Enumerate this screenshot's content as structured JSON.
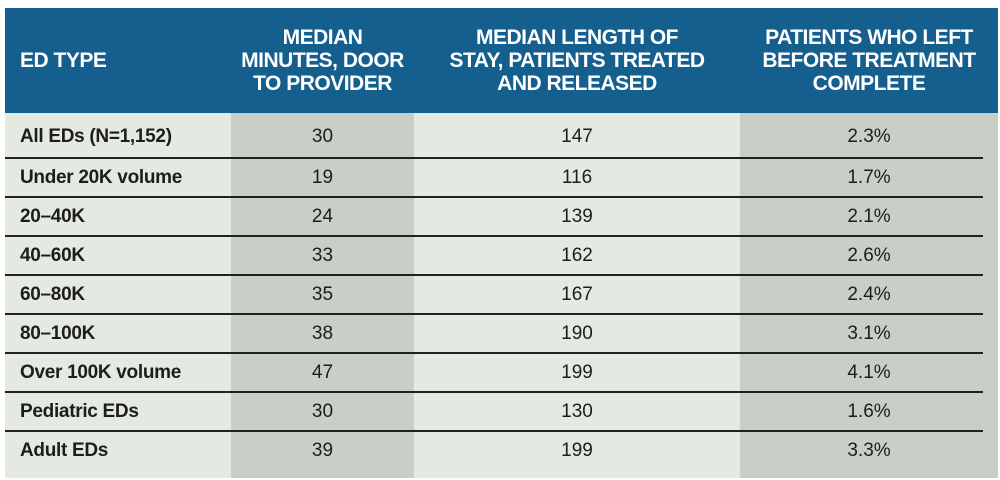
{
  "chart_data": {
    "type": "table",
    "columns": [
      {
        "label": "ED TYPE",
        "lines": [
          "ED TYPE"
        ]
      },
      {
        "label": "MEDIAN MINUTES, DOOR TO PROVIDER",
        "lines": [
          "MEDIAN",
          "MINUTES, DOOR",
          "TO PROVIDER"
        ]
      },
      {
        "label": "MEDIAN LENGTH OF STAY, PATIENTS TREATED AND RELEASED",
        "lines": [
          "MEDIAN LENGTH OF",
          "STAY, PATIENTS TREATED",
          "AND RELEASED"
        ]
      },
      {
        "label": "PATIENTS WHO LEFT BEFORE TREATMENT COMPLETE",
        "lines": [
          "PATIENTS WHO LEFT",
          "BEFORE TREATMENT",
          "COMPLETE"
        ]
      }
    ],
    "rows": [
      [
        "All EDs (N=1,152)",
        "30",
        "147",
        "2.3%"
      ],
      [
        "Under 20K volume",
        "19",
        "116",
        "1.7%"
      ],
      [
        "20–40K",
        "24",
        "139",
        "2.1%"
      ],
      [
        "40–60K",
        "33",
        "162",
        "2.6%"
      ],
      [
        "60–80K",
        "35",
        "167",
        "2.4%"
      ],
      [
        "80–100K",
        "38",
        "190",
        "3.1%"
      ],
      [
        "Over 100K volume",
        "47",
        "199",
        "4.1%"
      ],
      [
        "Pediatric EDs",
        "30",
        "130",
        "1.6%"
      ],
      [
        "Adult EDs",
        "39",
        "199",
        "3.3%"
      ]
    ]
  },
  "colors": {
    "header_bg": "#145f8d",
    "header_text": "#ffffff",
    "col_light": "#e4e9e2",
    "col_dark": "#c8cfc7",
    "text_dark": "#1d1d1b",
    "separator": "#212120"
  }
}
